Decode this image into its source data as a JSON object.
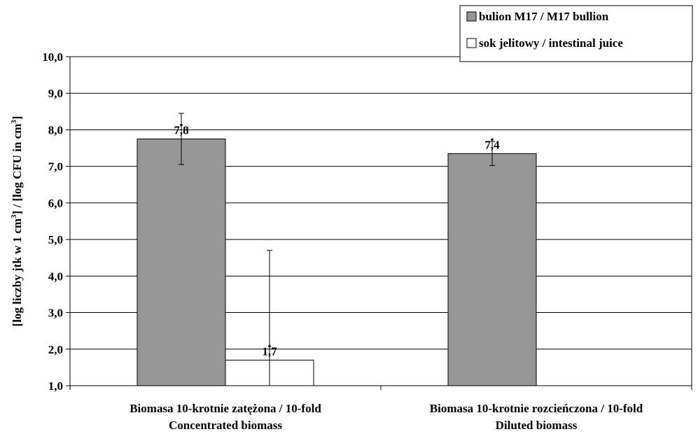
{
  "chart_data": {
    "type": "bar",
    "categories": [
      [
        "Biomasa 10-krotnie zatężona / 10-fold",
        "Concentrated biomass"
      ],
      [
        "Biomasa 10-krotnie rozcieńczona / 10-fold",
        "Diluted biomass"
      ]
    ],
    "series": [
      {
        "name": "bulion M17 / M17 bullion",
        "values": [
          7.75,
          7.35
        ],
        "error": [
          0.7,
          0.33
        ],
        "data_labels": [
          "7,8",
          "7,4"
        ],
        "color": "#969696"
      },
      {
        "name": "sok jelitowy / intestinal juice",
        "values": [
          1.7,
          null
        ],
        "error": [
          3.0,
          null
        ],
        "data_labels": [
          "1,7",
          null
        ],
        "color": "#ffffff"
      }
    ],
    "ylabel": "[log liczby jtk w 1 cm³] / [log CFU in cm³]",
    "ylim": [
      1.0,
      10.0
    ],
    "yticks": [
      "1,0",
      "2,0",
      "3,0",
      "4,0",
      "5,0",
      "6,0",
      "7,0",
      "8,0",
      "9,0",
      "10,0"
    ],
    "grid": true,
    "legend_position": "top-right"
  }
}
